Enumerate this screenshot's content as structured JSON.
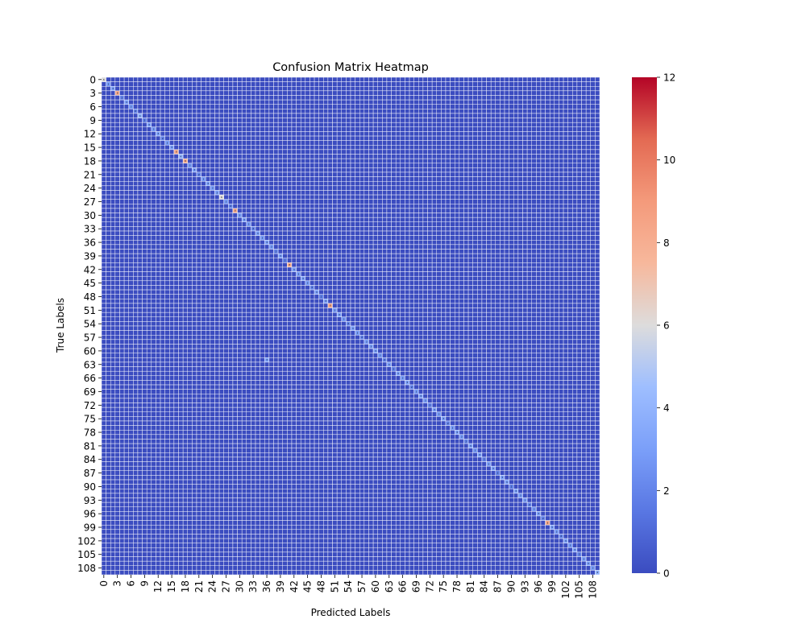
{
  "chart_data": {
    "type": "heatmap",
    "title": "Confusion Matrix Heatmap",
    "xlabel": "Predicted Labels",
    "ylabel": "True Labels",
    "n_classes": 110,
    "tick_step": 3,
    "x_tick_labels": [
      "0",
      "3",
      "6",
      "9",
      "12",
      "15",
      "18",
      "21",
      "24",
      "27",
      "30",
      "33",
      "36",
      "39",
      "42",
      "45",
      "48",
      "51",
      "54",
      "57",
      "60",
      "63",
      "66",
      "69",
      "72",
      "75",
      "78",
      "81",
      "84",
      "87",
      "90",
      "93",
      "96",
      "99",
      "102",
      "105",
      "108"
    ],
    "y_tick_labels": [
      "0",
      "3",
      "6",
      "9",
      "12",
      "15",
      "18",
      "21",
      "24",
      "27",
      "30",
      "33",
      "36",
      "39",
      "42",
      "45",
      "48",
      "51",
      "54",
      "57",
      "60",
      "63",
      "66",
      "69",
      "72",
      "75",
      "78",
      "81",
      "84",
      "87",
      "90",
      "93",
      "96",
      "99",
      "102",
      "105",
      "108"
    ],
    "colormap": "coolwarm",
    "vmin": 0,
    "vmax": 12,
    "colorbar_ticks": [
      "0",
      "2",
      "4",
      "6",
      "8",
      "10",
      "12"
    ],
    "cell_annotations": true,
    "grid_line_color": "#ffffff",
    "off_diagonal_value": 0,
    "diagonal_values": [
      6,
      3,
      3,
      8,
      2,
      3,
      3,
      2,
      4,
      2,
      3,
      3,
      3,
      2,
      3,
      3,
      8,
      4,
      8,
      3,
      3,
      2,
      3,
      3,
      3,
      3,
      6,
      3,
      2,
      8,
      3,
      3,
      3,
      2,
      3,
      3,
      3,
      3,
      2,
      3,
      2,
      8,
      3,
      3,
      3,
      3,
      2,
      3,
      2,
      3,
      8,
      3,
      3,
      3,
      2,
      3,
      3,
      2,
      3,
      3,
      3,
      3,
      2,
      3,
      2,
      3,
      3,
      3,
      2,
      3,
      3,
      3,
      2,
      3,
      3,
      3,
      2,
      3,
      3,
      3,
      2,
      3,
      3,
      3,
      2,
      3,
      3,
      2,
      3,
      3,
      2,
      3,
      3,
      3,
      2,
      3,
      3,
      2,
      8,
      3,
      3,
      2,
      3,
      3,
      3,
      2,
      3,
      3,
      3,
      4
    ],
    "off_diagonal_cells": [
      {
        "row": 62,
        "col": 36,
        "value": 3
      }
    ]
  }
}
